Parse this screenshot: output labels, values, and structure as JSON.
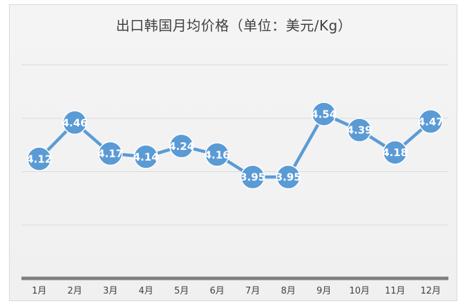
{
  "chart_data": {
    "type": "line",
    "title": "出口韩国月均价格（单位：美元/Kg）",
    "categories": [
      "1月",
      "2月",
      "3月",
      "4月",
      "5月",
      "6月",
      "7月",
      "8月",
      "9月",
      "10月",
      "11月",
      "12月"
    ],
    "series": [
      {
        "values": [
          4.12,
          4.46,
          4.17,
          4.14,
          4.24,
          4.16,
          3.95,
          3.95,
          4.54,
          4.39,
          4.18,
          4.47
        ]
      }
    ],
    "ylim": [
      3.0,
      5.0
    ],
    "grid": true,
    "legend": "none",
    "colors": {
      "series": "#5b9bd5",
      "axis": "#7f7f7f",
      "grid": "#d9d9d9"
    }
  }
}
